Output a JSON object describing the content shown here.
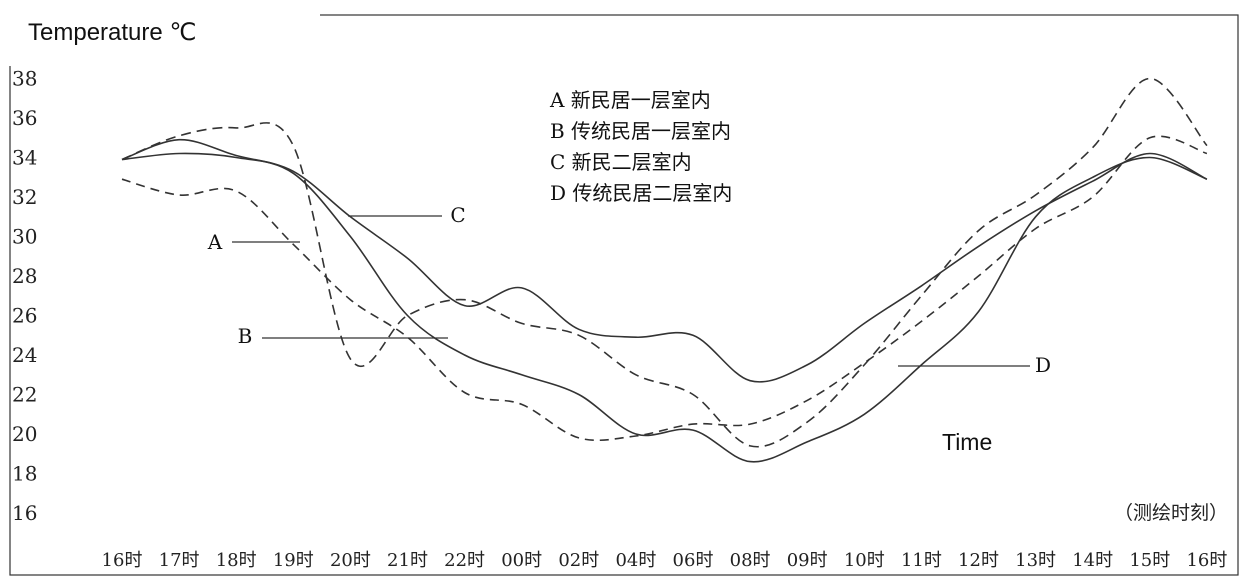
{
  "chart_data": {
    "type": "line",
    "ylabel": "Temperature ℃",
    "xlabel": "Time",
    "x_note": "（测绘时刻）",
    "categories": [
      "16时",
      "17时",
      "18时",
      "19时",
      "20时",
      "21时",
      "22时",
      "00时",
      "02时",
      "04时",
      "06时",
      "08时",
      "09时",
      "10时",
      "11时",
      "12时",
      "13时",
      "14时",
      "15时",
      "16时"
    ],
    "yticks": [
      "16",
      "18",
      "20",
      "22",
      "24",
      "26",
      "28",
      "30",
      "32",
      "34",
      "36",
      "38"
    ],
    "ylim": [
      15,
      38.5
    ],
    "legend": [
      "A 新民居一层室内",
      "B 传统民居一层室内",
      "C 新民二层室内",
      "D 传统民居二层室内"
    ],
    "legend_position": "top-center",
    "series": [
      {
        "name": "A",
        "style": "dashed",
        "values": [
          32.9,
          32.1,
          32.3,
          29.6,
          26.8,
          24.9,
          22.1,
          21.5,
          19.8,
          19.9,
          20.5,
          20.5,
          21.7,
          23.6,
          25.7,
          28.0,
          30.4,
          32.0,
          35.0,
          34.2
        ]
      },
      {
        "name": "B",
        "style": "dashed",
        "values": [
          33.9,
          35.1,
          35.5,
          34.6,
          23.8,
          26.0,
          26.8,
          25.6,
          25.0,
          23.0,
          22.0,
          19.4,
          20.6,
          23.5,
          27.0,
          30.3,
          32.1,
          34.5,
          38.0,
          34.6
        ]
      },
      {
        "name": "C",
        "style": "solid",
        "values": [
          33.9,
          34.9,
          34.1,
          33.3,
          31.0,
          28.9,
          26.5,
          27.4,
          25.3,
          24.9,
          25.0,
          22.7,
          23.5,
          25.6,
          27.5,
          29.5,
          31.3,
          32.8,
          34.2,
          32.9
        ]
      },
      {
        "name": "D",
        "style": "solid",
        "values": [
          33.9,
          34.2,
          34.0,
          33.2,
          30.0,
          26.0,
          24.0,
          23.0,
          22.0,
          20.0,
          20.2,
          18.6,
          19.6,
          21.0,
          23.5,
          26.2,
          31.0,
          33.0,
          34.0,
          32.9
        ]
      }
    ],
    "annotations": [
      "A",
      "B",
      "C",
      "D"
    ],
    "grid": false
  }
}
